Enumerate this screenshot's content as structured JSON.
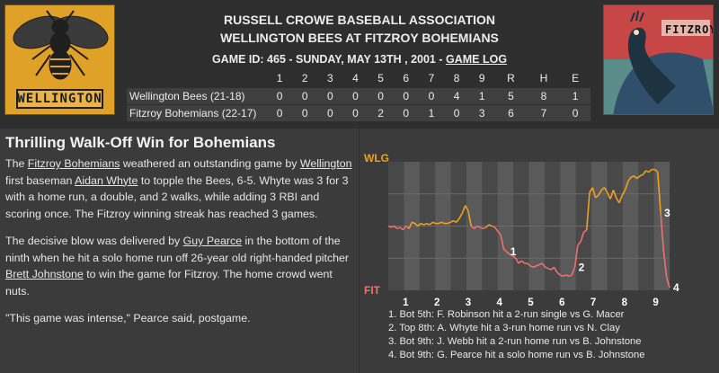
{
  "header": {
    "association": "RUSSELL CROWE BASEBALL ASSOCIATION",
    "matchup": "WELLINGTON BEES AT FITZROY BOHEMIANS",
    "game_info": "GAME ID: 465 - SUNDAY, MAY 13TH , 2001 - ",
    "game_log_link": "GAME LOG"
  },
  "logos": {
    "home_word": "FITZROY",
    "away_word": "WELLINGTON"
  },
  "box_score": {
    "innings": [
      "1",
      "2",
      "3",
      "4",
      "5",
      "6",
      "7",
      "8",
      "9"
    ],
    "totals_labels": [
      "R",
      "H",
      "E"
    ],
    "teams": [
      {
        "name": "Wellington Bees (21-18)",
        "innings": [
          "0",
          "0",
          "0",
          "0",
          "0",
          "0",
          "0",
          "4",
          "1"
        ],
        "r": "5",
        "h": "8",
        "e": "1"
      },
      {
        "name": "Fitzroy Bohemians (22-17)",
        "innings": [
          "0",
          "0",
          "0",
          "0",
          "2",
          "0",
          "1",
          "0",
          "3"
        ],
        "r": "6",
        "h": "7",
        "e": "0"
      }
    ]
  },
  "story": {
    "headline": "Thrilling Walk-Off Win for Bohemians",
    "p1": {
      "a": "The ",
      "team": "Fitzroy Bohemians",
      "b": " weathered an outstanding game by ",
      "opp": "Wellington",
      "c": " first baseman ",
      "player": "Aidan Whyte",
      "d": " to topple the Bees, 6-5. Whyte was 3 for 3 with a home run, a double, and 2 walks, while adding 3 RBI and scoring once. The Fitzroy winning streak has reached 3 games."
    },
    "p2": {
      "a": "The decisive blow was delivered by ",
      "hero": "Guy Pearce",
      "b": " in the bottom of the ninth when he hit a solo home run off 26-year old right-handed pitcher ",
      "pitcher": "Brett Johnstone",
      "c": " to win the game for Fitzroy. The home crowd went nuts."
    },
    "p3": "\"This game was intense,\" Pearce said, postgame."
  },
  "chart_data": {
    "type": "line",
    "top_label": "WLG",
    "bottom_label": "FIT",
    "inning_labels": [
      "1",
      "2",
      "3",
      "4",
      "5",
      "6",
      "7",
      "8",
      "9"
    ],
    "series_colors": {
      "away": "#f0a020",
      "home": "#f07070"
    },
    "values": [
      0.5,
      0.49,
      0.5,
      0.48,
      0.49,
      0.47,
      0.5,
      0.48,
      0.53,
      0.52,
      0.5,
      0.52,
      0.51,
      0.52,
      0.51,
      0.53,
      0.52,
      0.52,
      0.53,
      0.52,
      0.52,
      0.53,
      0.54,
      0.53,
      0.56,
      0.6,
      0.66,
      0.62,
      0.5,
      0.48,
      0.5,
      0.49,
      0.48,
      0.49,
      0.51,
      0.5,
      0.49,
      0.46,
      0.43,
      0.32,
      0.3,
      0.28,
      0.27,
      0.25,
      0.21,
      0.23,
      0.21,
      0.21,
      0.19,
      0.18,
      0.19,
      0.2,
      0.21,
      0.18,
      0.17,
      0.16,
      0.18,
      0.14,
      0.12,
      0.11,
      0.12,
      0.11,
      0.12,
      0.18,
      0.35,
      0.38,
      0.45,
      0.47,
      0.76,
      0.8,
      0.72,
      0.74,
      0.78,
      0.8,
      0.76,
      0.71,
      0.78,
      0.72,
      0.68,
      0.74,
      0.78,
      0.85,
      0.88,
      0.89,
      0.87,
      0.89,
      0.9,
      0.93,
      0.92,
      0.94,
      0.94,
      0.92,
      0.6,
      0.3,
      0.1,
      0.02
    ],
    "markers": [
      {
        "label": "1",
        "index": 40
      },
      {
        "label": "2",
        "index": 63
      },
      {
        "label": "3",
        "index": 92
      },
      {
        "label": "4",
        "index": 95
      }
    ],
    "events": [
      "1. Bot 5th: F. Robinson hit a 2-run single vs G. Macer",
      "2. Top 8th: A. Whyte hit a 3-run home run vs N. Clay",
      "3. Bot 9th: J. Webb hit a 2-run home run vs B. Johnstone",
      "4. Bot 9th: G. Pearce hit a solo home run vs B. Johnstone"
    ]
  }
}
